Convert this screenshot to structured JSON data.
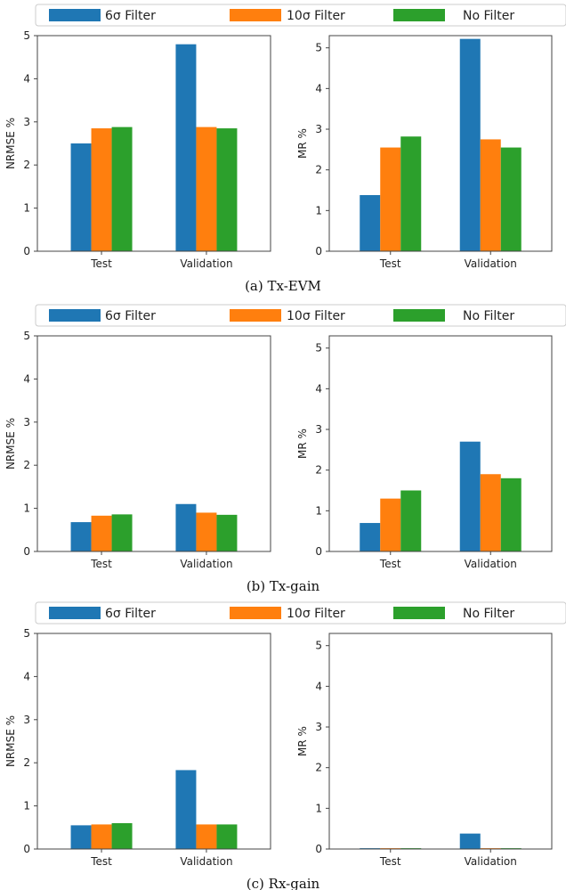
{
  "colors": {
    "s6": "#1f77b4",
    "s10": "#ff7f0e",
    "none": "#2ca02c",
    "axis": "#444444"
  },
  "legend": [
    "6σ Filter",
    "10σ Filter",
    "No Filter"
  ],
  "panels": [
    {
      "caption": "(a) Tx-EVM",
      "charts": [
        {
          "type": "bar",
          "ylabel": "NRMSE %",
          "categories": [
            "Test",
            "Validation"
          ],
          "ylim": [
            0,
            5
          ],
          "yticks": [
            0,
            1,
            2,
            3,
            4,
            5
          ],
          "series": [
            {
              "name": "6σ Filter",
              "values": [
                2.5,
                4.8
              ]
            },
            {
              "name": "10σ Filter",
              "values": [
                2.85,
                2.88
              ]
            },
            {
              "name": "No Filter",
              "values": [
                2.88,
                2.85
              ]
            }
          ]
        },
        {
          "type": "bar",
          "ylabel": "MR %",
          "categories": [
            "Test",
            "Validation"
          ],
          "ylim": [
            0,
            5.3
          ],
          "yticks": [
            0,
            1,
            2,
            3,
            4,
            5
          ],
          "series": [
            {
              "name": "6σ Filter",
              "values": [
                1.38,
                5.22
              ]
            },
            {
              "name": "10σ Filter",
              "values": [
                2.55,
                2.75
              ]
            },
            {
              "name": "No Filter",
              "values": [
                2.82,
                2.55
              ]
            }
          ]
        }
      ]
    },
    {
      "caption": "(b) Tx-gain",
      "charts": [
        {
          "type": "bar",
          "ylabel": "NRMSE %",
          "categories": [
            "Test",
            "Validation"
          ],
          "ylim": [
            0,
            5
          ],
          "yticks": [
            0,
            1,
            2,
            3,
            4,
            5
          ],
          "series": [
            {
              "name": "6σ Filter",
              "values": [
                0.68,
                1.1
              ]
            },
            {
              "name": "10σ Filter",
              "values": [
                0.83,
                0.9
              ]
            },
            {
              "name": "No Filter",
              "values": [
                0.86,
                0.85
              ]
            }
          ]
        },
        {
          "type": "bar",
          "ylabel": "MR %",
          "categories": [
            "Test",
            "Validation"
          ],
          "ylim": [
            0,
            5.3
          ],
          "yticks": [
            0,
            1,
            2,
            3,
            4,
            5
          ],
          "series": [
            {
              "name": "6σ Filter",
              "values": [
                0.7,
                2.7
              ]
            },
            {
              "name": "10σ Filter",
              "values": [
                1.3,
                1.9
              ]
            },
            {
              "name": "No Filter",
              "values": [
                1.5,
                1.8
              ]
            }
          ]
        }
      ]
    },
    {
      "caption": "(c) Rx-gain",
      "charts": [
        {
          "type": "bar",
          "ylabel": "NRMSE %",
          "categories": [
            "Test",
            "Validation"
          ],
          "ylim": [
            0,
            5
          ],
          "yticks": [
            0,
            1,
            2,
            3,
            4,
            5
          ],
          "series": [
            {
              "name": "6σ Filter",
              "values": [
                0.55,
                1.83
              ]
            },
            {
              "name": "10σ Filter",
              "values": [
                0.57,
                0.57
              ]
            },
            {
              "name": "No Filter",
              "values": [
                0.6,
                0.57
              ]
            }
          ]
        },
        {
          "type": "bar",
          "ylabel": "MR %",
          "categories": [
            "Test",
            "Validation"
          ],
          "ylim": [
            0,
            5.3
          ],
          "yticks": [
            0,
            1,
            2,
            3,
            4,
            5
          ],
          "series": [
            {
              "name": "6σ Filter",
              "values": [
                0.02,
                0.38
              ]
            },
            {
              "name": "10σ Filter",
              "values": [
                0.02,
                0.02
              ]
            },
            {
              "name": "No Filter",
              "values": [
                0.02,
                0.02
              ]
            }
          ]
        }
      ]
    }
  ]
}
